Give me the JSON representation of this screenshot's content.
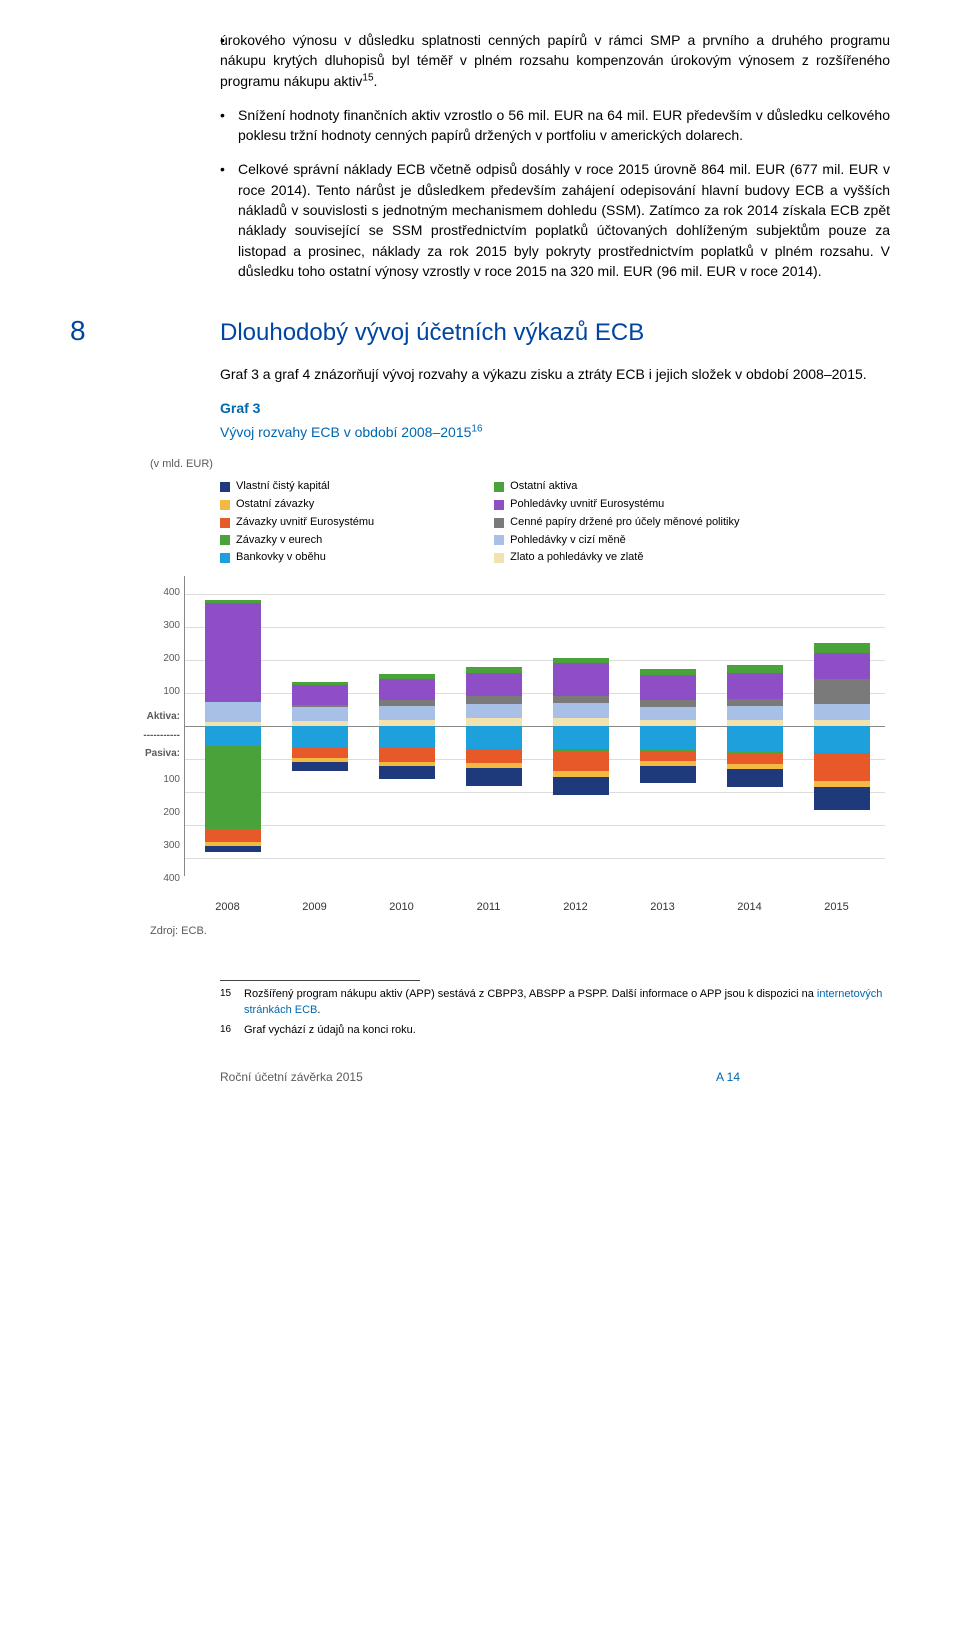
{
  "bullets": [
    "úrokového výnosu v důsledku splatnosti cenných papírů v rámci SMP a prvního a druhého programu nákupu krytých dluhopisů byl téměř v plném rozsahu kompenzován úrokovým výnosem z rozšířeného programu nákupu aktiv",
    "Snížení hodnoty finančních aktiv vzrostlo o 56 mil. EUR na 64 mil. EUR především v důsledku celkového poklesu tržní hodnoty cenných papírů držených v portfoliu v amerických dolarech.",
    "Celkové správní náklady ECB včetně odpisů dosáhly v roce 2015 úrovně 864 mil. EUR (677 mil. EUR v roce 2014). Tento nárůst je důsledkem především zahájení odepisování hlavní budovy ECB a vyšších nákladů v souvislosti s jednotným mechanismem dohledu (SSM). Zatímco za rok 2014 získala ECB zpět náklady související se SSM prostřednictvím poplatků účtovaných dohlíženým subjektům pouze za listopad a prosinec, náklady za rok 2015 byly pokryty prostřednictvím poplatků v plném rozsahu. V důsledku toho ostatní výnosy vzrostly v roce 2015 na 320 mil. EUR (96 mil. EUR v roce 2014)."
  ],
  "bullet1_sup": "15",
  "section": {
    "num": "8",
    "title": "Dlouhodobý vývoj účetních výkazů ECB"
  },
  "section_intro": "Graf 3 a graf 4 znázorňují vývoj rozvahy a výkazu zisku a ztráty ECB i jejich složek v období 2008–2015.",
  "chart": {
    "label": "Graf 3",
    "title_a": "Vývoj rozvahy ECB v období 2008–2015",
    "title_sup": "16",
    "unit": "(v mld. EUR)",
    "legend1": [
      {
        "c": "#1f3a7a",
        "t": "Vlastní čistý kapitál"
      },
      {
        "c": "#f4b940",
        "t": "Ostatní závazky"
      },
      {
        "c": "#e8592a",
        "t": "Závazky uvnitř Eurosystému"
      },
      {
        "c": "#4aa33a",
        "t": "Závazky v eurech"
      },
      {
        "c": "#1ea0dc",
        "t": "Bankovky v oběhu"
      }
    ],
    "legend2": [
      {
        "c": "#4aa33a",
        "t": "Ostatní aktiva"
      },
      {
        "c": "#8e4ec6",
        "t": "Pohledávky uvnitř Eurosystému"
      },
      {
        "c": "#7a7a7a",
        "t": "Cenné papíry držené pro účely měnové politiky"
      },
      {
        "c": "#a8bfe6",
        "t": "Pohledávky v cizí měně"
      },
      {
        "c": "#f2e2b0",
        "t": "Zlato a pohledávky ve zlatě"
      }
    ],
    "yticks_up": [
      "400",
      "300",
      "200",
      "100"
    ],
    "side_top": "Aktiva:",
    "side_mid": "-----------",
    "side_bot": "Pasiva:",
    "yticks_down": [
      "100",
      "200",
      "300",
      "400"
    ],
    "years": [
      "2008",
      "2009",
      "2010",
      "2011",
      "2012",
      "2013",
      "2014",
      "2015"
    ],
    "assets": [
      {
        "gold": 13,
        "fx": 60,
        "sec": 0,
        "intra": 300,
        "other": 10
      },
      {
        "gold": 15,
        "fx": 45,
        "sec": 5,
        "intra": 60,
        "other": 10
      },
      {
        "gold": 20,
        "fx": 42,
        "sec": 18,
        "intra": 65,
        "other": 15
      },
      {
        "gold": 24,
        "fx": 45,
        "sec": 22,
        "intra": 70,
        "other": 20
      },
      {
        "gold": 25,
        "fx": 45,
        "sec": 22,
        "intra": 100,
        "other": 15
      },
      {
        "gold": 18,
        "fx": 42,
        "sec": 20,
        "intra": 75,
        "other": 18
      },
      {
        "gold": 18,
        "fx": 45,
        "sec": 20,
        "intra": 80,
        "other": 22
      },
      {
        "gold": 18,
        "fx": 50,
        "sec": 75,
        "intra": 80,
        "other": 30
      }
    ],
    "liabs": [
      {
        "bank": 60,
        "eur": 250,
        "intra": 40,
        "other": 12,
        "cap": 20
      },
      {
        "bank": 62,
        "eur": 0,
        "intra": 35,
        "other": 10,
        "cap": 28
      },
      {
        "bank": 65,
        "eur": 2,
        "intra": 40,
        "other": 12,
        "cap": 41
      },
      {
        "bank": 68,
        "eur": 2,
        "intra": 42,
        "other": 15,
        "cap": 53
      },
      {
        "bank": 70,
        "eur": 5,
        "intra": 60,
        "other": 18,
        "cap": 54
      },
      {
        "bank": 72,
        "eur": 2,
        "intra": 30,
        "other": 15,
        "cap": 54
      },
      {
        "bank": 78,
        "eur": 2,
        "intra": 35,
        "other": 15,
        "cap": 55
      },
      {
        "bank": 82,
        "eur": 3,
        "intra": 80,
        "other": 20,
        "cap": 68
      }
    ],
    "scale": 0.33,
    "colors": {
      "gold": "#f2e2b0",
      "fx": "#a8bfe6",
      "sec": "#7a7a7a",
      "intra": "#8e4ec6",
      "other": "#4aa33a",
      "bank": "#1ea0dc",
      "eur": "#4aa33a",
      "intraL": "#e8592a",
      "otherL": "#f4b940",
      "cap": "#1f3a7a"
    },
    "source": "Zdroj: ECB."
  },
  "footnotes": [
    {
      "n": "15",
      "t": "Rozšířený program nákupu aktiv (APP) sestává z CBPP3, ABSPP a PSPP. Další informace o APP jsou k dispozici na ",
      "link": "internetových stránkách ECB",
      "after": "."
    },
    {
      "n": "16",
      "t": "Graf vychází z údajů na konci roku."
    }
  ],
  "footer": {
    "left": "Roční účetní závěrka 2015",
    "right": "A 14"
  }
}
